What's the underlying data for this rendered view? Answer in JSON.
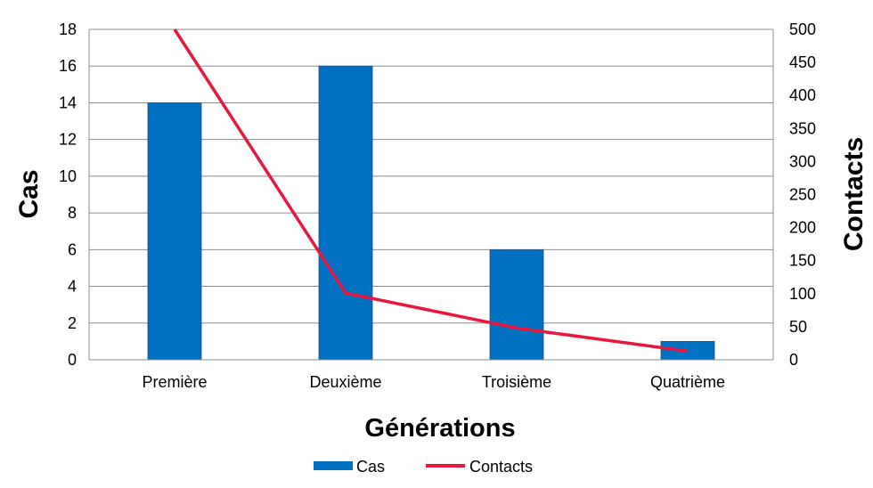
{
  "chart_data": {
    "type": "bar",
    "categories": [
      "Première",
      "Deuxième",
      "Troisième",
      "Quatrième"
    ],
    "series": [
      {
        "name": "Cas",
        "type": "bar",
        "axis": "left",
        "color": "#0070C0",
        "values": [
          14,
          16,
          6,
          1
        ]
      },
      {
        "name": "Contacts",
        "type": "line",
        "axis": "right",
        "color": "#E8173E",
        "values": [
          500,
          101,
          48,
          13
        ]
      }
    ],
    "xlabel": "Générations",
    "ylabel": "Cas",
    "y2label": "Contacts",
    "ylim": [
      0,
      18
    ],
    "y2lim": [
      0,
      500
    ],
    "yticks": [
      "0",
      "2",
      "4",
      "6",
      "8",
      "10",
      "12",
      "14",
      "16",
      "18"
    ],
    "y2ticks": [
      "0",
      "50",
      "100",
      "150",
      "200",
      "250",
      "300",
      "350",
      "400",
      "450",
      "500"
    ],
    "grid": true,
    "legend": "bottom"
  }
}
